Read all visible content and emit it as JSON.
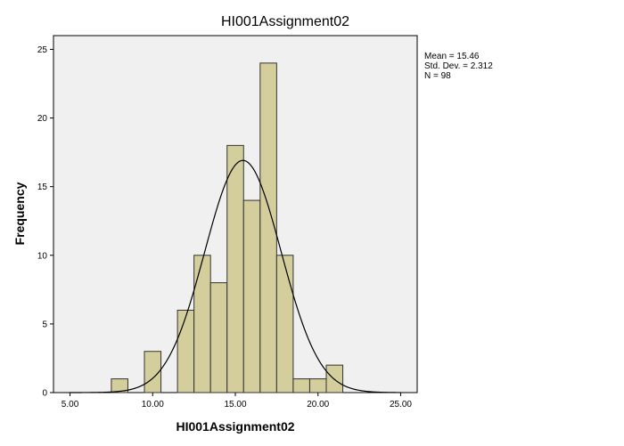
{
  "chart_data": {
    "type": "bar",
    "title": "HI001Assignment02",
    "xlabel": "HI001Assignment02",
    "ylabel": "Frequency",
    "xlim": [
      4.0,
      26.0
    ],
    "ylim": [
      0,
      26
    ],
    "x_ticks": [
      5,
      10,
      15,
      20,
      25
    ],
    "x_tick_labels": [
      "5.00",
      "10.00",
      "15.00",
      "20.00",
      "25.00"
    ],
    "y_ticks": [
      0,
      5,
      10,
      15,
      20,
      25
    ],
    "y_tick_labels": [
      "0",
      "5",
      "10",
      "15",
      "20",
      "25"
    ],
    "bin_width": 1.0,
    "bins": [
      {
        "x": 8,
        "value": 1
      },
      {
        "x": 10,
        "value": 3
      },
      {
        "x": 12,
        "value": 6
      },
      {
        "x": 13,
        "value": 10
      },
      {
        "x": 14,
        "value": 8
      },
      {
        "x": 15,
        "value": 18
      },
      {
        "x": 16,
        "value": 14
      },
      {
        "x": 17,
        "value": 24
      },
      {
        "x": 18,
        "value": 10
      },
      {
        "x": 19,
        "value": 1
      },
      {
        "x": 20,
        "value": 1
      },
      {
        "x": 21,
        "value": 2
      }
    ],
    "normal_curve": {
      "mean": 15.46,
      "std_dev": 2.312,
      "n": 98
    },
    "stats_lines": [
      "Mean = 15.46",
      "Std. Dev. = 2.312",
      "N = 98"
    ],
    "colors": {
      "bar_fill": "#d3ce9c",
      "bar_stroke": "#333333",
      "plot_background": "#f0f0f0",
      "curve": "#000000"
    },
    "legend_placement": "right",
    "grid": false
  }
}
